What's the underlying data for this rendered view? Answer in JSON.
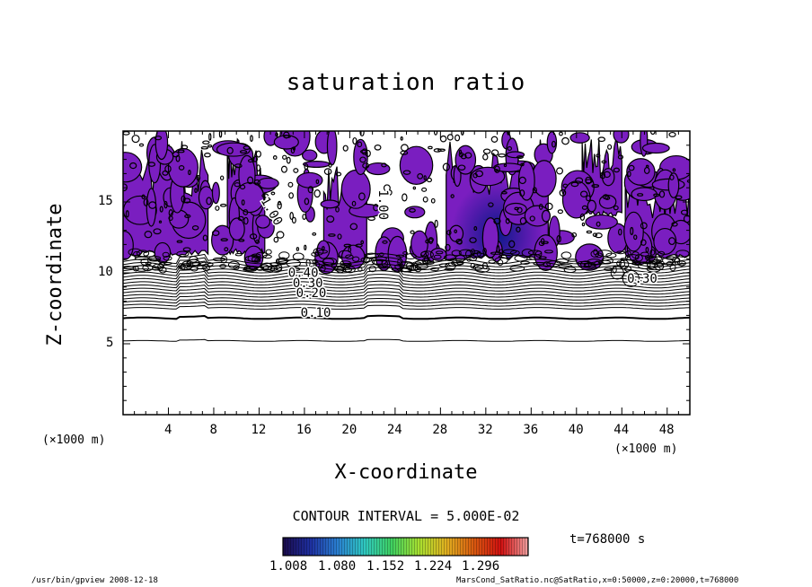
{
  "chart_data": {
    "type": "contour",
    "title": "saturation ratio",
    "xlabel": "X-coordinate",
    "ylabel": "Z-coordinate",
    "x_unit": "(×1000 m)",
    "xlim": [
      0,
      50
    ],
    "ylim": [
      0,
      20
    ],
    "xticks": [
      4,
      8,
      12,
      16,
      20,
      24,
      28,
      32,
      36,
      40,
      44,
      48
    ],
    "yticks": [
      5,
      10,
      15
    ],
    "contour_interval": "CONTOUR INTERVAL = 5.000E-02",
    "contour_labels": [
      {
        "label": "0.10",
        "x": 17.0,
        "z": 6.9
      },
      {
        "label": "0.20",
        "x": 16.6,
        "z": 8.3
      },
      {
        "label": "0.30",
        "x": 16.3,
        "z": 9.0
      },
      {
        "label": "0.40",
        "x": 15.9,
        "z": 9.7
      },
      {
        "label": "0.30",
        "x": 45.8,
        "z": 9.3
      },
      {
        "label": "1.00",
        "x": 22.6,
        "z": 14.8
      },
      {
        "label": "1.00",
        "x": 12.8,
        "z": 14.2
      }
    ],
    "colorbar": {
      "ticks": [
        "1.008",
        "1.080",
        "1.152",
        "1.224",
        "1.296"
      ],
      "colors": [
        "#1a0a4a",
        "#1e2fa0",
        "#2a7fd0",
        "#2fc8c0",
        "#3fd060",
        "#a8e030",
        "#e0b020",
        "#d85a10",
        "#d01010",
        "#f0a0a0"
      ]
    },
    "fill_color": "#7a1ec0",
    "time_label": "t=768000 s"
  },
  "footer": {
    "left": "/usr/bin/gpview   2008-12-18",
    "right": "MarsCond_SatRatio.nc@SatRatio,x=0:50000,z=0:20000,t=768000"
  }
}
